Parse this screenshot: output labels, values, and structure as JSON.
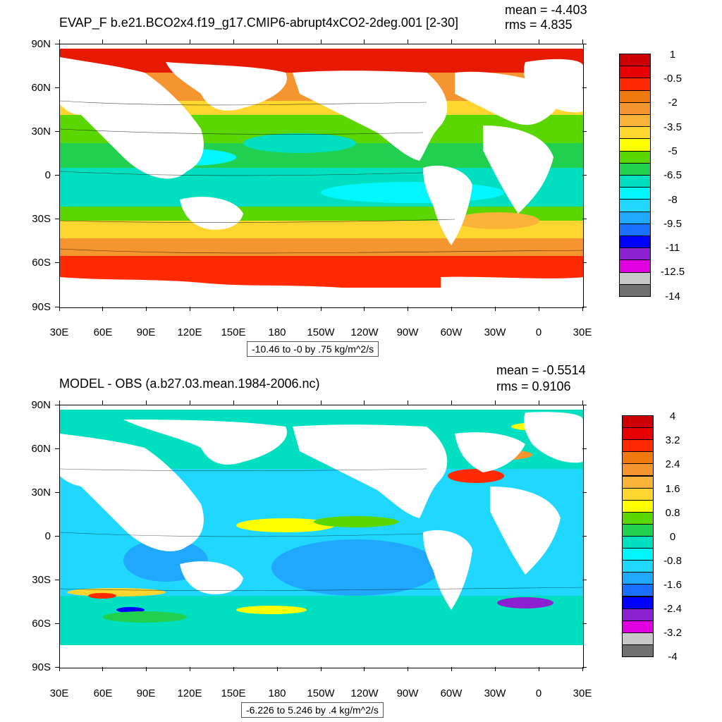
{
  "panel_top": {
    "title": "EVAP_F b.e21.BCO2x4.f19_g17.CMIP6-abrupt4xCO2-2deg.001 [2-30]",
    "mean": "mean = -4.403",
    "rms": "rms = 4.835",
    "range_label": "-10.46 to -0 by .75 kg/m^2/s",
    "colorbar": {
      "colors": [
        "#cc0000",
        "#e60000",
        "#ff2a00",
        "#f07a10",
        "#f49530",
        "#f9b338",
        "#ffd530",
        "#ffff00",
        "#5ad700",
        "#22d050",
        "#00e0c0",
        "#00f7ff",
        "#20d8ff",
        "#20a8ff",
        "#1a6fff",
        "#0000ff",
        "#8a20d0",
        "#e000e0",
        "#c8c8c8",
        "#707070"
      ],
      "labels": [
        "1",
        "-0.5",
        "-2",
        "-3.5",
        "-5",
        "-6.5",
        "-8",
        "-9.5",
        "-11",
        "-12.5",
        "-14"
      ]
    }
  },
  "panel_bottom": {
    "title": "MODEL - OBS (a.b27.03.mean.1984-2006.nc)",
    "mean": "mean = -0.5514",
    "rms": "rms = 0.9106",
    "range_label": "-6.226 to 5.246 by .4 kg/m^2/s",
    "colorbar": {
      "colors": [
        "#cc0000",
        "#e60000",
        "#ff2a00",
        "#f07a10",
        "#f49530",
        "#f9b338",
        "#ffd530",
        "#ffff00",
        "#5ad700",
        "#22d050",
        "#00e0c0",
        "#00f7ff",
        "#20d8ff",
        "#20a8ff",
        "#1a6fff",
        "#0000ff",
        "#8a20d0",
        "#e000e0",
        "#c8c8c8",
        "#707070"
      ],
      "labels": [
        "4",
        "3.2",
        "2.4",
        "1.6",
        "0.8",
        "0",
        "-0.8",
        "-1.6",
        "-2.4",
        "-3.2",
        "-4"
      ]
    }
  },
  "axes": {
    "lat_labels": [
      "90N",
      "60N",
      "30N",
      "0",
      "30S",
      "60S",
      "90S"
    ],
    "lon_labels": [
      "30E",
      "60E",
      "90E",
      "120E",
      "150E",
      "180",
      "150W",
      "120W",
      "90W",
      "60W",
      "30W",
      "0",
      "30E"
    ]
  },
  "colors": {
    "land": "#ffffff",
    "ocean_base_top": "#22d050",
    "ocean_base_bottom": "#00e0c0"
  }
}
